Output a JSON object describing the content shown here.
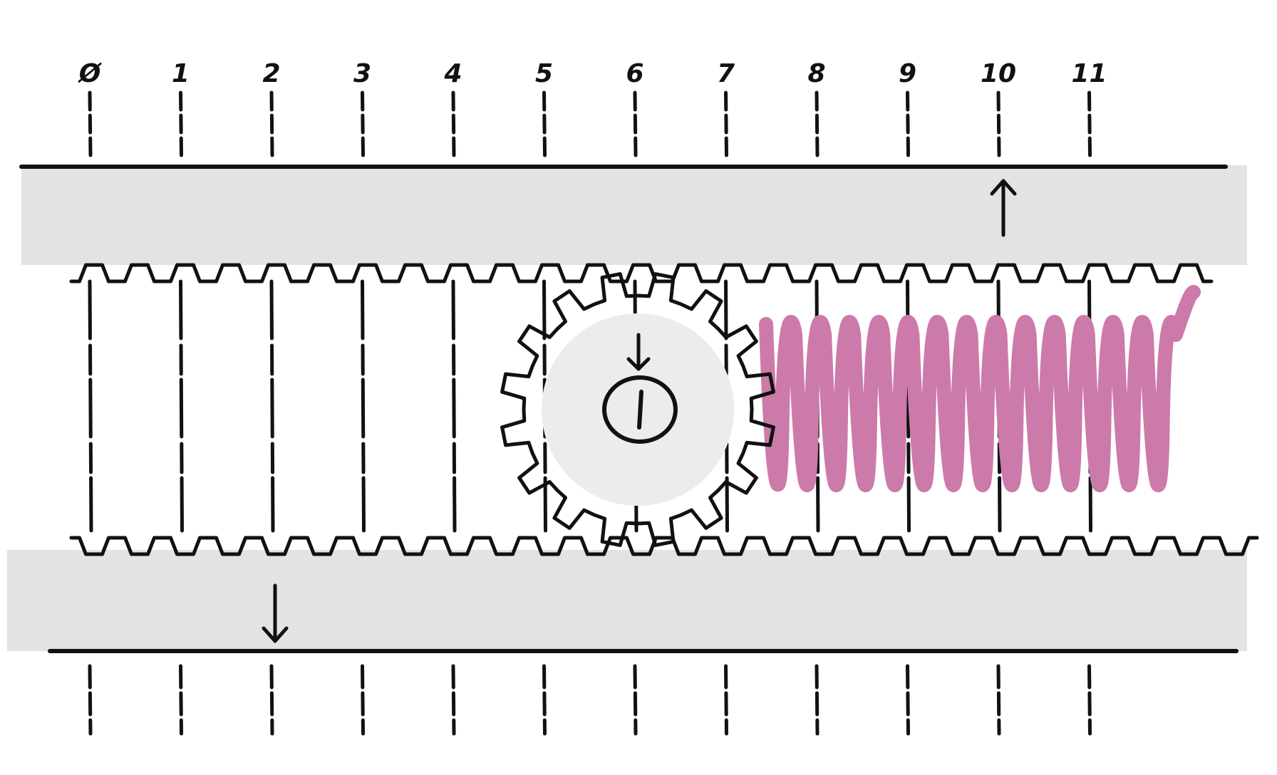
{
  "ruler": {
    "labels": [
      "Ø",
      "1",
      "2",
      "3",
      "4",
      "5",
      "6",
      "7",
      "8",
      "9",
      "10",
      "11"
    ]
  },
  "colors": {
    "ink": "#111111",
    "rack_fill": "#e3e3e3",
    "gear_fill": "#ececec",
    "spring": "#cc7aaa",
    "background": "#ffffff"
  },
  "icons": {
    "top_arrow": "up-arrow-icon",
    "bottom_arrow": "down-arrow-icon",
    "gear_arrow": "down-arrow-icon",
    "gear": "gear-icon",
    "spring": "spring-icon"
  }
}
